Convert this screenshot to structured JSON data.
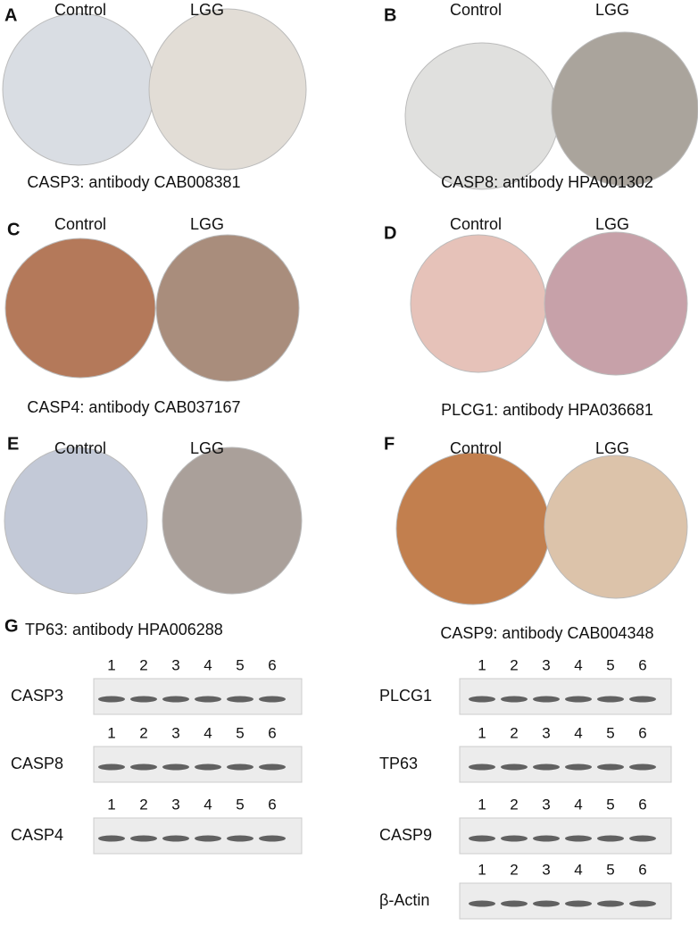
{
  "panels": [
    {
      "letter": "A",
      "left_label": "Control",
      "right_label": "LGG",
      "caption": "CASP3: antibody CAB008381"
    },
    {
      "letter": "B",
      "left_label": "Control",
      "right_label": "LGG",
      "caption": "CASP8: antibody HPA001302"
    },
    {
      "letter": "C",
      "left_label": "Control",
      "right_label": "LGG",
      "caption": "CASP4: antibody CAB037167"
    },
    {
      "letter": "D",
      "left_label": "Control",
      "right_label": "LGG",
      "caption": "PLCG1: antibody HPA036681"
    },
    {
      "letter": "E",
      "left_label": "Control",
      "right_label": "LGG",
      "caption": "TP63: antibody HPA006288"
    },
    {
      "letter": "F",
      "left_label": "Control",
      "right_label": "LGG",
      "caption": "CASP9: antibody CAB004348"
    }
  ],
  "blot": {
    "letter": "G",
    "lanes": [
      1,
      2,
      3,
      4,
      5,
      6
    ],
    "left": [
      "CASP3",
      "CASP8",
      "CASP4"
    ],
    "right": [
      "PLCG1",
      "TP63",
      "CASP9",
      "β-Actin"
    ]
  }
}
